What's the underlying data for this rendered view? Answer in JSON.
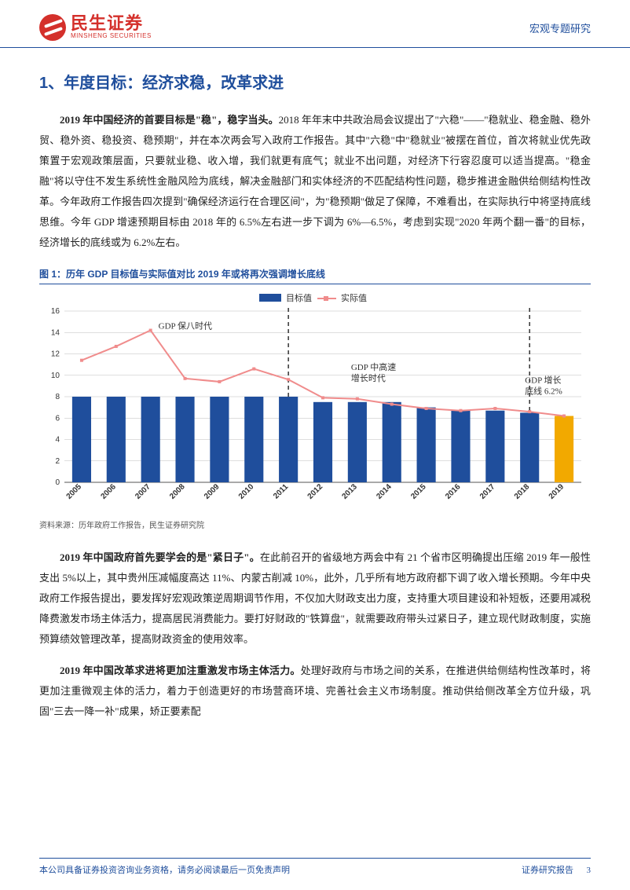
{
  "header": {
    "logo_cn": "民生证券",
    "logo_en": "MINSHENG SECURITIES",
    "right": "宏观专题研究"
  },
  "section_title": "1、年度目标：经济求稳，改革求进",
  "paragraphs": {
    "p1_bold": "2019 年中国经济的首要目标是\"稳\"，稳字当头。",
    "p1_rest": "2018 年年末中共政治局会议提出了\"六稳\"——\"稳就业、稳金融、稳外贸、稳外资、稳投资、稳预期\"，并在本次两会写入政府工作报告。其中\"六稳\"中\"稳就业\"被摆在首位，首次将就业优先政策置于宏观政策层面，只要就业稳、收入增，我们就更有底气；就业不出问题，对经济下行容忍度可以适当提高。\"稳金融\"将以守住不发生系统性金融风险为底线，解决金融部门和实体经济的不匹配结构性问题，稳步推进金融供给侧结构性改革。今年政府工作报告四次提到\"确保经济运行在合理区间\"，为\"稳预期\"做足了保障，不难看出，在实际执行中将坚持底线思维。今年 GDP 增速预期目标由 2018 年的 6.5%左右进一步下调为 6%—6.5%，考虑到实现\"2020 年两个翻一番\"的目标，经济增长的底线或为 6.2%左右。",
    "p2_bold": "2019 年中国政府首先要学会的是\"紧日子\"。",
    "p2_rest": "在此前召开的省级地方两会中有 21 个省市区明确提出压缩 2019 年一般性支出 5%以上，其中贵州压减幅度高达 11%、内蒙古削减 10%，此外，几乎所有地方政府都下调了收入增长预期。今年中央政府工作报告提出，要发挥好宏观政策逆周期调节作用，不仅加大财政支出力度，支持重大项目建设和补短板，还要用减税降费激发市场主体活力，提高居民消费能力。要打好财政的\"铁算盘\"，就需要政府带头过紧日子，建立现代财政制度，实施预算绩效管理改革，提高财政资金的使用效率。",
    "p3_bold": "2019 年中国改革求进将更加注重激发市场主体活力。",
    "p3_rest": "处理好政府与市场之间的关系，在推进供给侧结构性改革时，将更加注重微观主体的活力，着力于创造更好的市场营商环境、完善社会主义市场制度。推动供给侧改革全方位升级，巩固\"三去一降一补\"成果，矫正要素配"
  },
  "chart": {
    "title": "图 1：历年 GDP 目标值与实际值对比 2019 年或将再次强调增长底线",
    "legend": {
      "target": "目标值",
      "actual": "实际值"
    },
    "annotations": {
      "era1": "GDP 保八时代",
      "era2": "GDP 中高速\n增长时代",
      "era3": "GDP 增长\n底线 6.2%"
    },
    "years": [
      "2005",
      "2006",
      "2007",
      "2008",
      "2009",
      "2010",
      "2011",
      "2012",
      "2013",
      "2014",
      "2015",
      "2016",
      "2017",
      "2018",
      "2019"
    ],
    "target_values": [
      8,
      8,
      8,
      8,
      8,
      8,
      8,
      7.5,
      7.5,
      7.5,
      7.0,
      6.7,
      6.7,
      6.5,
      6.2
    ],
    "actual_values": [
      11.4,
      12.7,
      14.2,
      9.7,
      9.4,
      10.6,
      9.6,
      7.9,
      7.8,
      7.3,
      6.9,
      6.7,
      6.9,
      6.6,
      6.2
    ],
    "highlight_index": 14,
    "ylim": [
      0,
      16
    ],
    "ytick_step": 2,
    "colors": {
      "bar": "#1f4e9c",
      "bar_highlight": "#f2a900",
      "line": "#f08c8c",
      "marker": "#f08c8c",
      "axis": "#555555",
      "grid": "#bdbdbd",
      "vline": "#333333",
      "text": "#333333"
    },
    "bar_width": 0.55,
    "line_width": 2,
    "marker_size": 4,
    "label_fontsize": 10,
    "axis_fontsize": 10
  },
  "chart_source": "资料来源：历年政府工作报告，民生证券研究院",
  "footer": {
    "left": "本公司具备证券投资咨询业务资格，请务必阅读最后一页免责声明",
    "right_label": "证券研究报告",
    "page": "3"
  }
}
